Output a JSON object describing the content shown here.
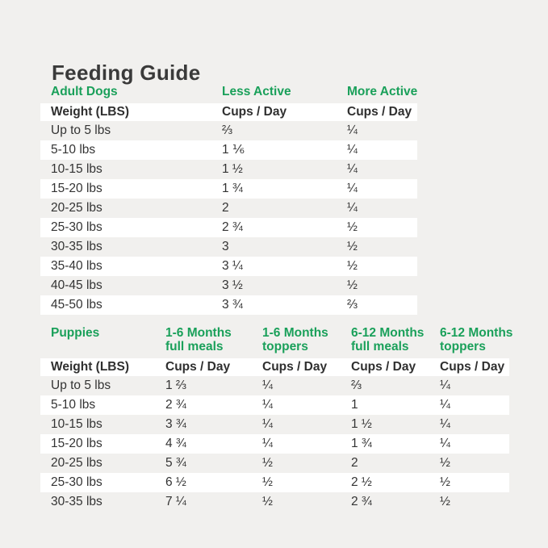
{
  "title": "Feeding Guide",
  "colors": {
    "accent_green": "#1aa05a",
    "text_dark": "#333333",
    "page_background": "#f1f0ee",
    "row_stripe": "#ffffff"
  },
  "adult_table": {
    "section_label": "Adult Dogs",
    "activity_headers": [
      "Less Active",
      "More Active"
    ],
    "weight_header": "Weight (LBS)",
    "cups_header": "Cups / Day",
    "rows": [
      {
        "weight": "Up to 5 lbs",
        "cells": [
          "⅔",
          "¼"
        ]
      },
      {
        "weight": "5-10 lbs",
        "cells": [
          "1 ⅙",
          "¼"
        ]
      },
      {
        "weight": "10-15 lbs",
        "cells": [
          "1 ½",
          "¼"
        ]
      },
      {
        "weight": "15-20 lbs",
        "cells": [
          "1 ¾",
          "¼"
        ]
      },
      {
        "weight": "20-25 lbs",
        "cells": [
          "2",
          "¼"
        ]
      },
      {
        "weight": "25-30 lbs",
        "cells": [
          "2 ¾",
          "½"
        ]
      },
      {
        "weight": "30-35 lbs",
        "cells": [
          "3",
          "½"
        ]
      },
      {
        "weight": "35-40 lbs",
        "cells": [
          "3 ¼",
          "½"
        ]
      },
      {
        "weight": "40-45 lbs",
        "cells": [
          "3 ½",
          "½"
        ]
      },
      {
        "weight": "45-50 lbs",
        "cells": [
          "3 ¾",
          "⅔"
        ]
      }
    ]
  },
  "puppies_table": {
    "section_label": "Puppies",
    "age_headers": [
      {
        "line1": "1-6 Months",
        "line2": "full meals"
      },
      {
        "line1": "1-6 Months",
        "line2": "toppers"
      },
      {
        "line1": "6-12 Months",
        "line2": "full meals"
      },
      {
        "line1": "6-12 Months",
        "line2": "toppers"
      }
    ],
    "weight_header": "Weight (LBS)",
    "cups_header": "Cups / Day",
    "rows": [
      {
        "weight": "Up to 5 lbs",
        "cells": [
          "1 ⅔",
          "¼",
          "⅔",
          "¼"
        ]
      },
      {
        "weight": "5-10 lbs",
        "cells": [
          "2 ¾",
          "¼",
          "1",
          "¼"
        ]
      },
      {
        "weight": "10-15 lbs",
        "cells": [
          "3 ¾",
          "¼",
          "1 ½",
          "¼"
        ]
      },
      {
        "weight": "15-20 lbs",
        "cells": [
          "4 ¾",
          "¼",
          "1 ¾",
          "¼"
        ]
      },
      {
        "weight": "20-25 lbs",
        "cells": [
          "5 ¾",
          "½",
          "2",
          "½"
        ]
      },
      {
        "weight": "25-30 lbs",
        "cells": [
          "6 ½",
          "½",
          "2 ½",
          "½"
        ]
      },
      {
        "weight": "30-35 lbs",
        "cells": [
          "7 ¼",
          "½",
          "2 ¾",
          "½"
        ]
      }
    ]
  }
}
